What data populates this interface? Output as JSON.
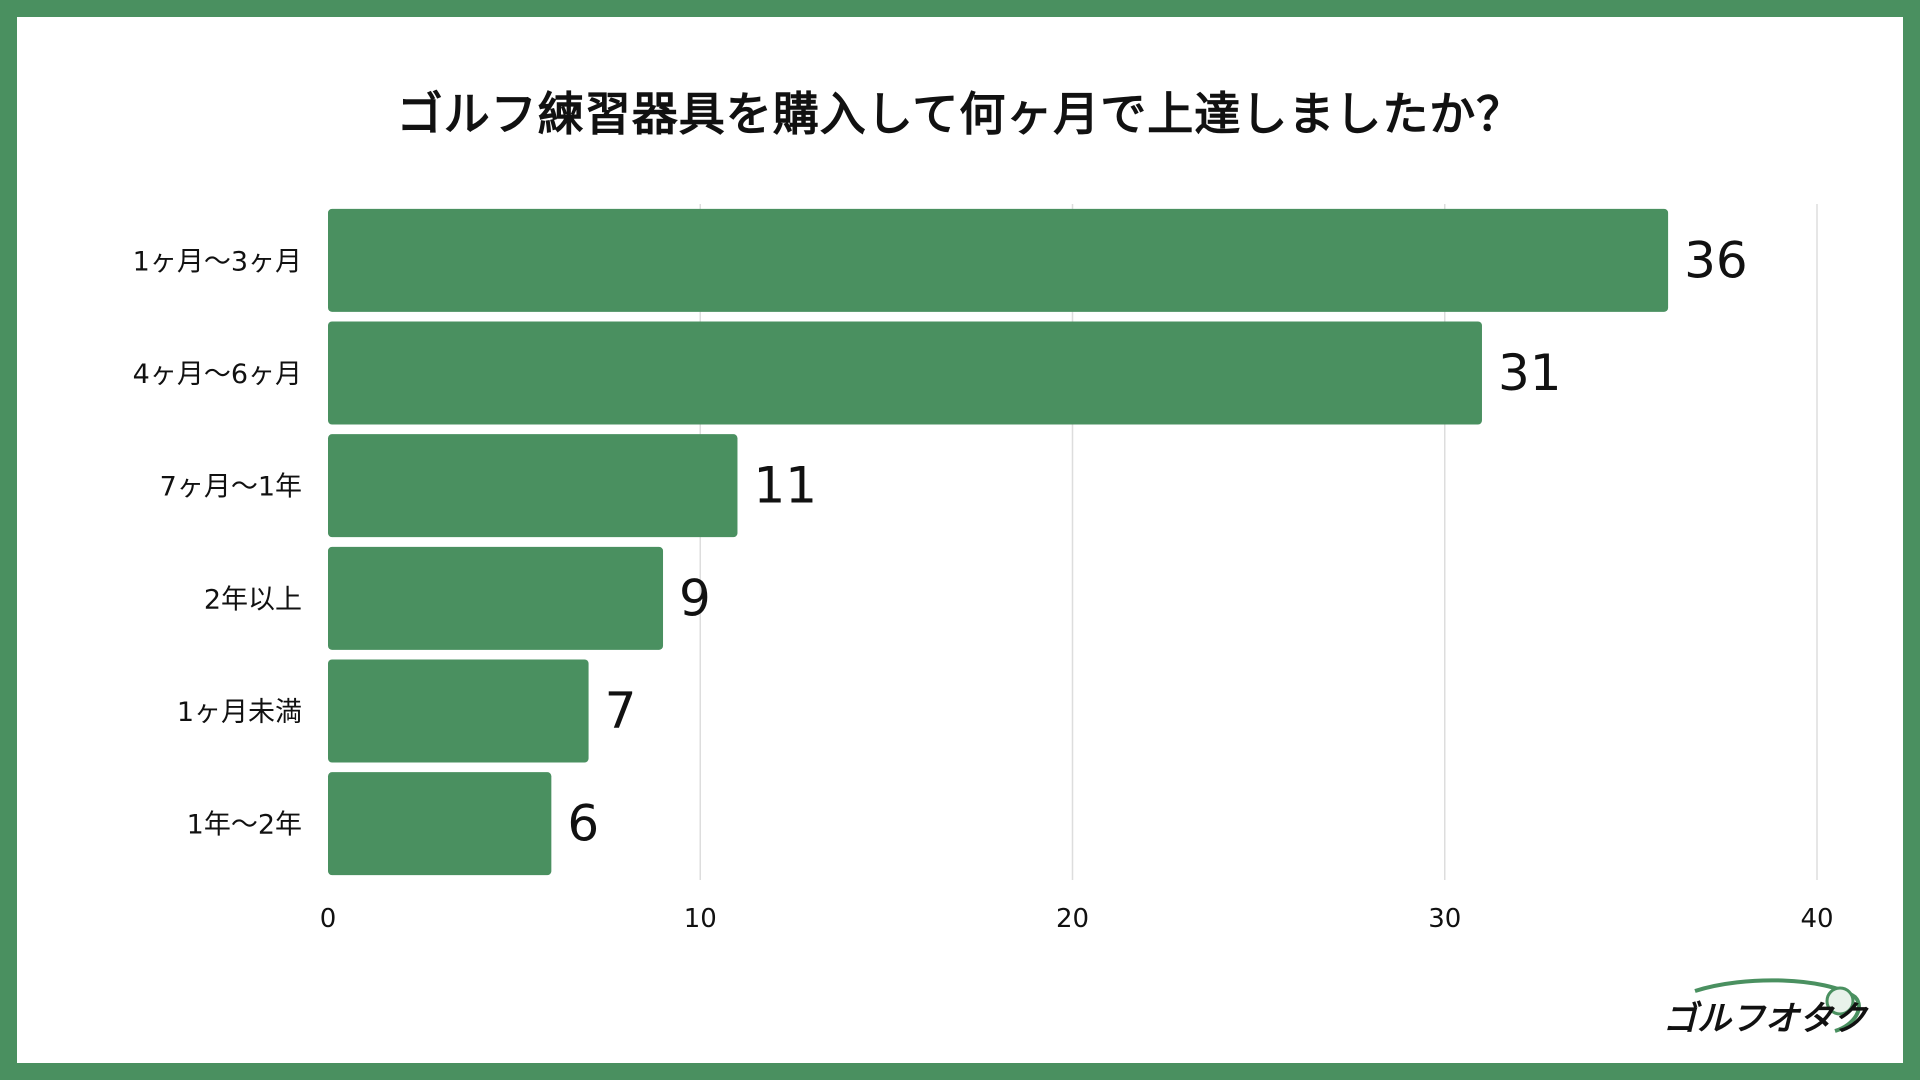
{
  "chart_data": {
    "type": "bar",
    "orientation": "horizontal",
    "title": "ゴルフ練習器具を購入して何ヶ月で上達しましたか？",
    "categories": [
      "1ヶ月〜3ヶ月",
      "4ヶ月〜6ヶ月",
      "7ヶ月〜1年",
      "2年以上",
      "1ヶ月未満",
      "1年〜2年"
    ],
    "values": [
      36,
      31,
      11,
      9,
      7,
      6
    ],
    "xlim": [
      0,
      40
    ],
    "xticks": [
      "0",
      "10",
      "20",
      "30",
      "40"
    ],
    "xlabel": "",
    "ylabel": "",
    "grid": "vertical",
    "legend": "none",
    "data_labels": true
  },
  "colors": {
    "frame": "#4a9060",
    "bar": "#4a9060",
    "grid": "#dddddd",
    "text": "#111111"
  },
  "logo": {
    "text": "ゴルフオタク",
    "icon": "golf-ball-swoosh-icon"
  }
}
